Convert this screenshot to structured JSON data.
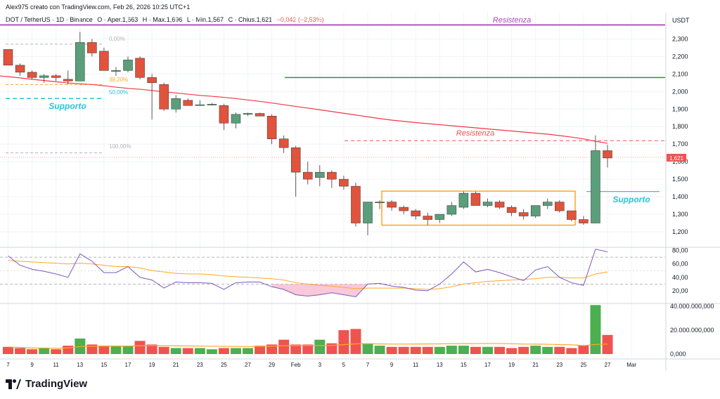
{
  "header": {
    "author_line": "Alex975 creato con TradingView.com, Feb 26, 2026 10:25 UTC+1",
    "symbol": "DOT / TetherUS · 1D · Binance",
    "open": "O · Aper.1,663",
    "high": "H · Max.1,696",
    "low": "L · Min.1,567",
    "close": "C · Chius.1,621",
    "change": "−0,042 (−2,53%)"
  },
  "price_axis": {
    "currency": "USDT",
    "last_price": "1,621",
    "labels": [
      "2,300",
      "2,200",
      "2,100",
      "2,000",
      "1,900",
      "1,800",
      "1,700",
      "1,600",
      "1,500",
      "1,400",
      "1,300",
      "1,200"
    ]
  },
  "rsi_axis": {
    "labels": [
      "80,00",
      "60,00",
      "40,00",
      "20,00"
    ]
  },
  "volume_axis": {
    "labels": [
      "40.000.000,000",
      "20.000.000,000",
      "0,000"
    ]
  },
  "time_axis": [
    "7",
    "9",
    "11",
    "13",
    "15",
    "17",
    "19",
    "21",
    "23",
    "25",
    "27",
    "29",
    "Feb",
    "3",
    "5",
    "7",
    "9",
    "11",
    "13",
    "15",
    "17",
    "19",
    "21",
    "23",
    "25",
    "27",
    "Mar"
  ],
  "annotations": {
    "resistance_top": "Resistenza",
    "resistance_mid": "Resistenza",
    "support_left": "Supporto",
    "support_right": "Supporto",
    "fib_0": "0,00%",
    "fib_382": "38,20%",
    "fib_50": "50,00%",
    "fib_100": "100,00%"
  },
  "brand": {
    "name": "TradingView"
  },
  "colors": {
    "up": "#26a69a",
    "down": "#ef5350",
    "ma": "#f23645",
    "rsi": "#7e57c2",
    "rsi_ma": "#ffa726",
    "resistance": "#9c27b0",
    "green_level": "#388e3c",
    "box": "#ff9800",
    "support": "#00bcd4"
  },
  "chart_data": {
    "type": "candlestick",
    "xlabel": "",
    "ylabel": "",
    "ylim": [
      1120,
      2380
    ],
    "candles": [
      [
        2240,
        2240,
        2150,
        2150
      ],
      [
        2150,
        2160,
        2090,
        2110
      ],
      [
        2110,
        2120,
        2070,
        2080
      ],
      [
        2080,
        2100,
        2050,
        2090
      ],
      [
        2090,
        2100,
        2060,
        2080
      ],
      [
        2070,
        2120,
        2040,
        2060
      ],
      [
        2060,
        2340,
        2060,
        2280
      ],
      [
        2280,
        2300,
        2200,
        2220
      ],
      [
        2230,
        2250,
        2120,
        2120
      ],
      [
        2120,
        2140,
        2090,
        2120
      ],
      [
        2120,
        2200,
        2110,
        2180
      ],
      [
        2190,
        2200,
        2070,
        2080
      ],
      [
        2080,
        2100,
        1840,
        2050
      ],
      [
        2040,
        2050,
        1890,
        1900
      ],
      [
        1900,
        1980,
        1880,
        1960
      ],
      [
        1950,
        1960,
        1920,
        1920
      ],
      [
        1920,
        1950,
        1920,
        1925
      ],
      [
        1925,
        1935,
        1920,
        1928
      ],
      [
        1920,
        1930,
        1780,
        1820
      ],
      [
        1820,
        1880,
        1790,
        1870
      ],
      [
        1870,
        1880,
        1860,
        1875
      ],
      [
        1875,
        1880,
        1860,
        1860
      ],
      [
        1860,
        1870,
        1700,
        1730
      ],
      [
        1730,
        1750,
        1650,
        1680
      ],
      [
        1680,
        1690,
        1400,
        1540
      ],
      [
        1540,
        1600,
        1470,
        1500
      ],
      [
        1510,
        1580,
        1460,
        1540
      ],
      [
        1540,
        1550,
        1450,
        1500
      ],
      [
        1500,
        1520,
        1440,
        1460
      ],
      [
        1460,
        1480,
        1230,
        1250
      ],
      [
        1250,
        1370,
        1180,
        1370
      ],
      [
        1370,
        1380,
        1330,
        1370
      ],
      [
        1370,
        1380,
        1320,
        1340
      ],
      [
        1340,
        1350,
        1300,
        1320
      ],
      [
        1320,
        1330,
        1270,
        1290
      ],
      [
        1290,
        1310,
        1240,
        1270
      ],
      [
        1270,
        1300,
        1250,
        1300
      ],
      [
        1300,
        1370,
        1290,
        1350
      ],
      [
        1340,
        1430,
        1330,
        1420
      ],
      [
        1420,
        1430,
        1350,
        1350
      ],
      [
        1350,
        1390,
        1340,
        1370
      ],
      [
        1370,
        1380,
        1330,
        1340
      ],
      [
        1340,
        1350,
        1290,
        1310
      ],
      [
        1310,
        1330,
        1270,
        1290
      ],
      [
        1290,
        1350,
        1280,
        1350
      ],
      [
        1350,
        1390,
        1330,
        1370
      ],
      [
        1370,
        1380,
        1310,
        1320
      ],
      [
        1320,
        1320,
        1260,
        1270
      ],
      [
        1270,
        1290,
        1240,
        1250
      ],
      [
        1250,
        1750,
        1250,
        1663
      ],
      [
        1663,
        1696,
        1567,
        1621
      ]
    ],
    "ma": [
      2085,
      2078,
      2070,
      2063,
      2056,
      2049,
      2044,
      2040,
      2033,
      2025,
      2018,
      2013,
      2006,
      1998,
      1992,
      1985,
      1978,
      1973,
      1967,
      1960,
      1952,
      1944,
      1935,
      1925,
      1915,
      1906,
      1896,
      1886,
      1876,
      1866,
      1856,
      1846,
      1837,
      1830,
      1823,
      1817,
      1811,
      1805,
      1799,
      1793,
      1787,
      1781,
      1775,
      1769,
      1763,
      1757,
      1749,
      1740,
      1730,
      1716,
      1705
    ],
    "rsi": [
      72,
      58,
      52,
      49,
      45,
      40,
      75,
      64,
      47,
      47,
      56,
      40,
      36,
      24,
      33,
      32,
      32,
      31,
      22,
      32,
      33,
      33,
      26,
      22,
      14,
      12,
      14,
      17,
      14,
      11,
      30,
      31,
      27,
      25,
      21,
      20,
      30,
      45,
      63,
      48,
      52,
      47,
      41,
      35,
      51,
      56,
      40,
      32,
      28,
      82,
      78
    ],
    "rsi_ma": [
      65,
      64,
      63,
      62,
      61,
      60,
      61,
      60,
      58,
      56,
      56,
      54,
      50,
      48,
      46,
      45,
      45,
      44,
      42,
      41,
      40,
      39,
      38,
      36,
      32,
      30,
      28,
      27,
      25,
      23,
      24,
      24,
      24,
      24,
      23,
      22,
      23,
      26,
      30,
      32,
      34,
      35,
      36,
      37,
      38,
      40,
      40,
      39,
      39,
      45,
      48
    ],
    "volume": [
      6,
      5,
      4,
      5,
      4,
      7,
      13,
      8,
      7,
      7,
      7,
      11,
      8,
      6,
      5,
      5,
      5,
      4,
      5,
      5,
      5,
      7,
      8,
      12,
      8,
      8,
      12,
      9,
      20,
      21,
      9,
      7,
      6,
      6,
      6,
      6,
      6,
      7,
      7,
      6,
      6,
      6,
      5,
      6,
      7,
      6,
      6,
      5,
      7,
      41,
      16
    ],
    "volume_unit": "millions",
    "levels": {
      "resistance": 2380,
      "green_level": 2080,
      "resistance_dashed": 1720,
      "support_right": 1430,
      "support_left": 1960,
      "range_box": [
        1250,
        1420
      ],
      "fib_0": 2270,
      "fib_382": 2040,
      "fib_50": 2000,
      "fib_100": 1650
    }
  }
}
